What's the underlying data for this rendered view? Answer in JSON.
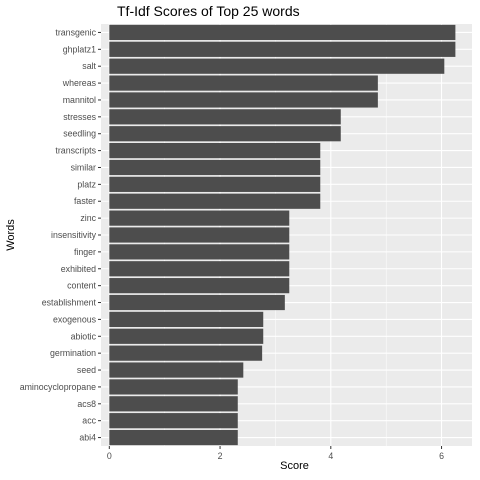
{
  "chart_data": {
    "type": "bar",
    "orientation": "horizontal",
    "title": "Tf-Idf Scores of Top 25 words",
    "xlabel": "Score",
    "ylabel": "Words",
    "xlim": [
      -0.15,
      6.55
    ],
    "xticks": [
      0,
      2,
      4,
      6
    ],
    "grid": true,
    "legend": "none",
    "categories": [
      "transgenic",
      "ghplatz1",
      "salt",
      "whereas",
      "mannitol",
      "stresses",
      "seedling",
      "transcripts",
      "similar",
      "platz",
      "faster",
      "zinc",
      "insensitivity",
      "finger",
      "exhibited",
      "content",
      "establishment",
      "exogenous",
      "abiotic",
      "germination",
      "seed",
      "aminocyclopropane",
      "acs8",
      "acc",
      "abi4"
    ],
    "values": [
      6.25,
      6.25,
      6.05,
      4.85,
      4.85,
      4.18,
      4.18,
      3.81,
      3.81,
      3.81,
      3.81,
      3.25,
      3.25,
      3.25,
      3.25,
      3.25,
      3.17,
      2.78,
      2.78,
      2.76,
      2.42,
      2.32,
      2.32,
      2.32,
      2.32
    ],
    "bar_color": "#4d4d4d",
    "panel_color": "#ebebeb",
    "grid_color": "#ffffff"
  }
}
